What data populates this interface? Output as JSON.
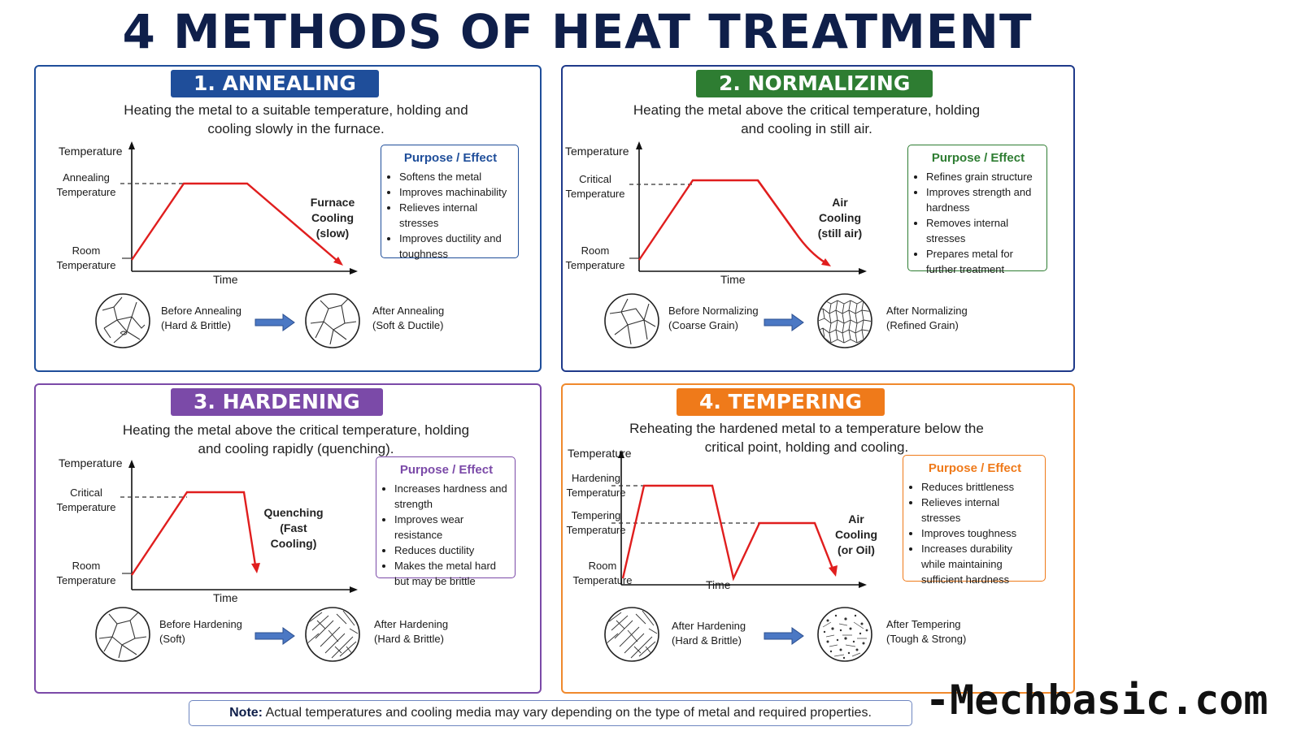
{
  "title": "4 METHODS OF HEAT TREATMENT",
  "colors": {
    "annealing": "#1f4e9a",
    "normalizing": "#2e7d32",
    "hardening": "#7b4aa8",
    "tempering": "#ef7a1a",
    "curve": "#e01e1e"
  },
  "panels": [
    {
      "heading": "1. ANNEALING",
      "desc_lines": [
        "Heating the metal to a suitable temperature, holding and",
        "cooling slowly in the furnace."
      ],
      "y_axis": "Temperature",
      "x_axis": "Time",
      "upper_label": [
        "Annealing",
        "Temperature"
      ],
      "lower_label": [
        "Room",
        "Temperature"
      ],
      "cooling_label": [
        "Furnace",
        "Cooling",
        "(slow)"
      ],
      "purpose_title": "Purpose / Effect",
      "purpose": [
        "Softens the metal",
        "Improves machinability",
        "Relieves internal stresses",
        "Improves ductility and toughness"
      ],
      "before_caption": [
        "Before Annealing",
        "(Hard & Brittle)"
      ],
      "after_caption": [
        "After Annealing",
        "(Soft & Ductile)"
      ]
    },
    {
      "heading": "2. NORMALIZING",
      "desc_lines": [
        "Heating the metal above the critical temperature, holding",
        "and cooling in still air."
      ],
      "y_axis": "Temperature",
      "x_axis": "Time",
      "upper_label": [
        "Critical",
        "Temperature"
      ],
      "lower_label": [
        "Room",
        "Temperature"
      ],
      "cooling_label": [
        "Air",
        "Cooling",
        "(still air)"
      ],
      "purpose_title": "Purpose / Effect",
      "purpose": [
        "Refines grain structure",
        "Improves strength and hardness",
        "Removes internal stresses",
        "Prepares metal for further treatment"
      ],
      "before_caption": [
        "Before Normalizing",
        "(Coarse Grain)"
      ],
      "after_caption": [
        "After Normalizing",
        "(Refined Grain)"
      ]
    },
    {
      "heading": "3. HARDENING",
      "desc_lines": [
        "Heating the metal above the critical temperature, holding",
        "and cooling rapidly (quenching)."
      ],
      "y_axis": "Temperature",
      "x_axis": "Time",
      "upper_label": [
        "Critical",
        "Temperature"
      ],
      "lower_label": [
        "Room",
        "Temperature"
      ],
      "cooling_label": [
        "Quenching",
        "(Fast",
        "Cooling)"
      ],
      "purpose_title": "Purpose / Effect",
      "purpose": [
        "Increases hardness and strength",
        "Improves wear resistance",
        "Reduces ductility",
        "Makes the metal hard but may be brittle"
      ],
      "before_caption": [
        "Before Hardening",
        "(Soft)"
      ],
      "after_caption": [
        "After Hardening",
        "(Hard & Brittle)"
      ]
    },
    {
      "heading": "4. TEMPERING",
      "desc_lines": [
        "Reheating the hardened metal to a temperature below the",
        "critical point, holding and cooling."
      ],
      "y_axis": "Temperature",
      "x_axis": "Time",
      "upper_label": [
        "Hardening",
        "Temperature"
      ],
      "middle_label": [
        "Tempering",
        "Temperature"
      ],
      "lower_label": [
        "Room",
        "Temperature"
      ],
      "cooling_label": [
        "Air",
        "Cooling",
        "(or Oil)"
      ],
      "purpose_title": "Purpose / Effect",
      "purpose": [
        "Reduces brittleness",
        "Relieves internal stresses",
        "Improves toughness",
        "Increases durability while maintaining sufficient hardness"
      ],
      "before_caption": [
        "After Hardening",
        "(Hard & Brittle)"
      ],
      "after_caption": [
        "After Tempering",
        "(Tough & Strong)"
      ]
    }
  ],
  "note_label": "Note:",
  "note_text": "Actual temperatures and cooling media may vary depending on the type of metal and required properties.",
  "brand": "-Mechbasic.com"
}
